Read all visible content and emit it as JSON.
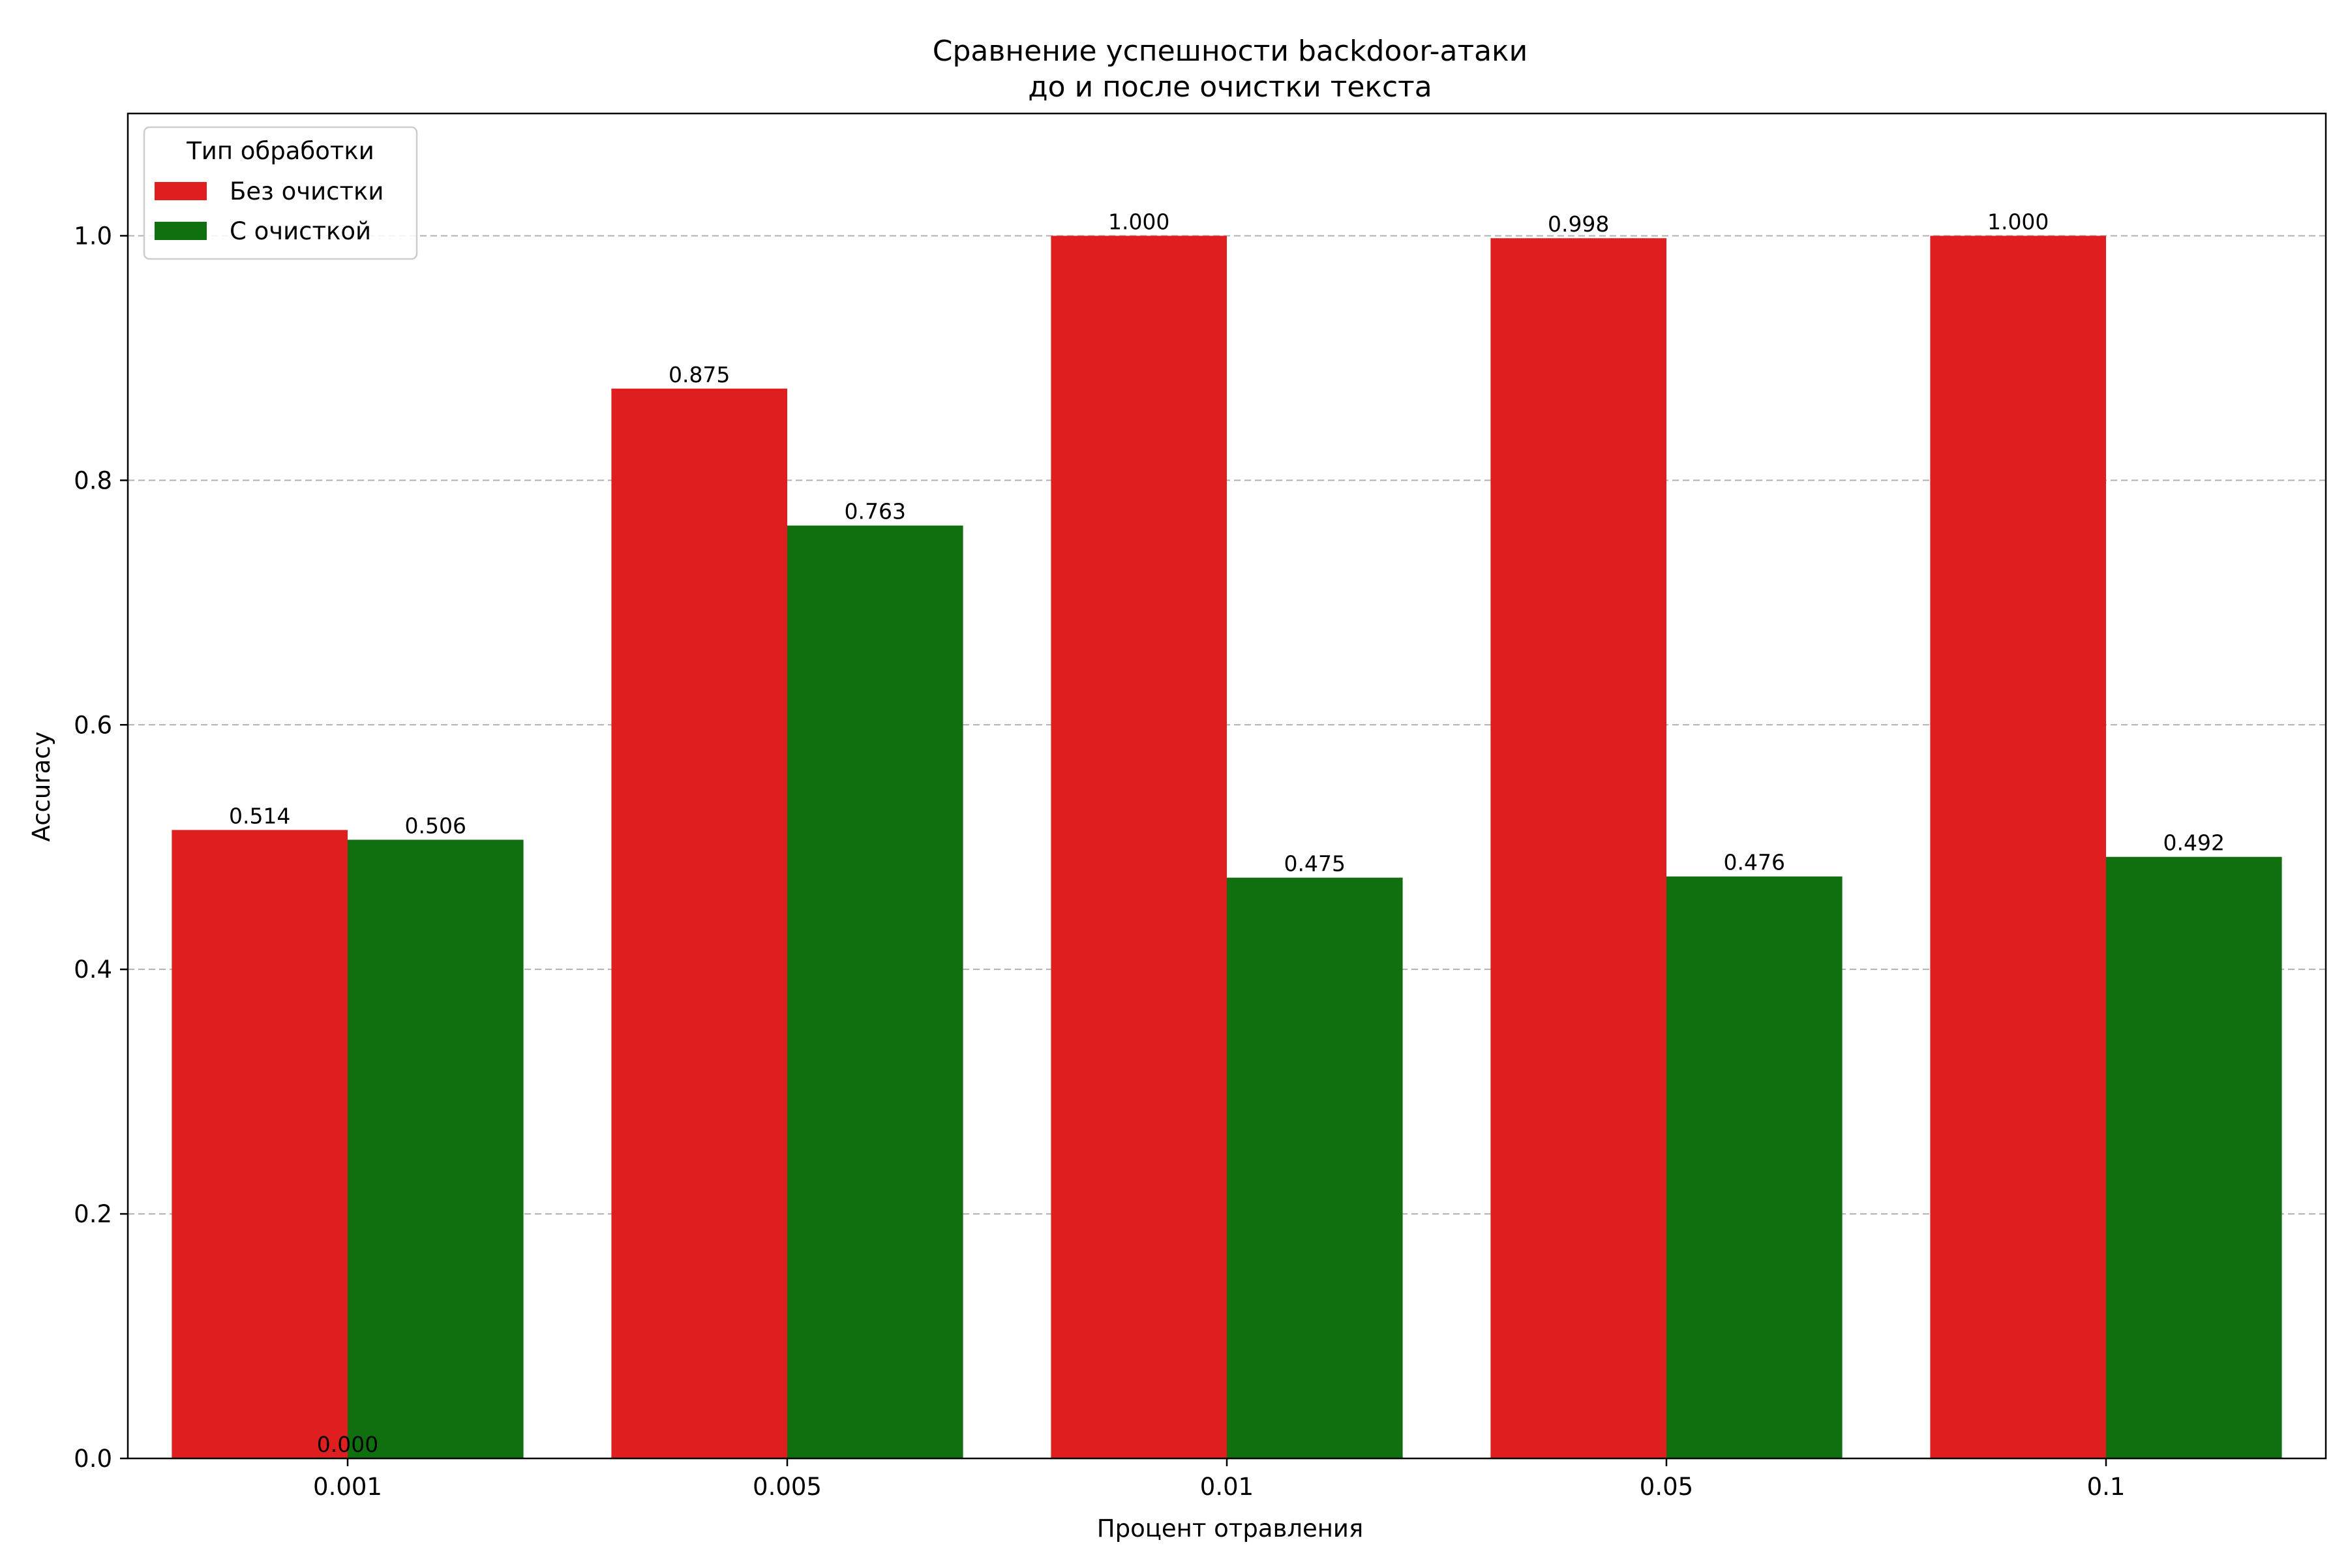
{
  "chart_data": {
    "type": "bar",
    "title": "Сравнение успешности backdoor-атаки",
    "subtitle": "до и после очистки текста",
    "xlabel": "Процент отравления",
    "ylabel": "Accuracy",
    "categories": [
      "0.001",
      "0.005",
      "0.01",
      "0.05",
      "0.1"
    ],
    "series": [
      {
        "name": "Без очистки",
        "color": "#df1f1f",
        "values": [
          0.514,
          0.875,
          1.0,
          0.998,
          1.0
        ]
      },
      {
        "name": "С очисткой",
        "color": "#107010",
        "values": [
          0.506,
          0.763,
          0.475,
          0.476,
          0.492
        ]
      }
    ],
    "extra_labels": [
      {
        "category": "0.001",
        "y": 0.0,
        "text": "0.000"
      }
    ],
    "ylim": [
      0,
      1.1
    ],
    "yticks": [
      0.0,
      0.2,
      0.4,
      0.6,
      0.8,
      1.0
    ],
    "ytick_labels": [
      "0.0",
      "0.2",
      "0.4",
      "0.6",
      "0.8",
      "1.0"
    ],
    "grid": true,
    "legend": {
      "title": "Тип обработки",
      "position": "top-left"
    }
  }
}
